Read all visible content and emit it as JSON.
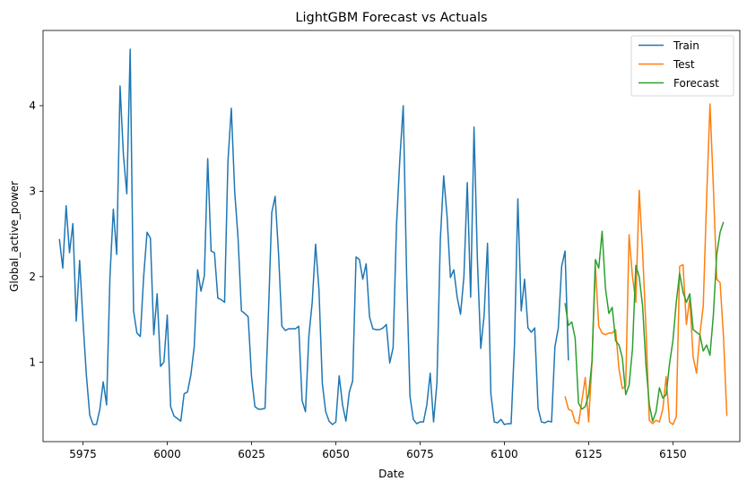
{
  "chart_data": {
    "type": "line",
    "title": "LightGBM Forecast vs Actuals",
    "xlabel": "Date",
    "ylabel": "Global_active_power",
    "xlim": [
      5963.15,
      6169.85
    ],
    "ylim": [
      0.07,
      4.88
    ],
    "xticks": [
      5975,
      6000,
      6025,
      6050,
      6075,
      6100,
      6125,
      6150
    ],
    "yticks": [
      1,
      2,
      3,
      4
    ],
    "grid": false,
    "legend_position": "top-right",
    "series": [
      {
        "name": "Train",
        "color": "#1f77b4",
        "x_start": 5968,
        "values": [
          2.44,
          2.1,
          2.83,
          2.28,
          2.62,
          1.48,
          2.19,
          1.48,
          0.85,
          0.38,
          0.27,
          0.27,
          0.45,
          0.77,
          0.5,
          2.0,
          2.79,
          2.26,
          4.23,
          3.42,
          2.97,
          4.66,
          1.6,
          1.34,
          1.3,
          2.0,
          2.52,
          2.45,
          1.32,
          1.8,
          0.95,
          1.0,
          1.55,
          0.48,
          0.37,
          0.34,
          0.31,
          0.63,
          0.65,
          0.85,
          1.18,
          2.08,
          1.83,
          2.01,
          3.38,
          2.3,
          2.28,
          1.75,
          1.73,
          1.7,
          3.35,
          3.97,
          3.0,
          2.45,
          1.6,
          1.57,
          1.53,
          0.83,
          0.48,
          0.45,
          0.45,
          0.46,
          1.55,
          2.75,
          2.94,
          2.28,
          1.42,
          1.37,
          1.39,
          1.39,
          1.39,
          1.42,
          0.55,
          0.42,
          1.3,
          1.7,
          2.38,
          1.85,
          0.75,
          0.42,
          0.31,
          0.27,
          0.3,
          0.84,
          0.5,
          0.31,
          0.65,
          0.78,
          2.23,
          2.2,
          1.97,
          2.15,
          1.53,
          1.39,
          1.38,
          1.38,
          1.4,
          1.44,
          0.99,
          1.17,
          2.6,
          3.38,
          4.0,
          2.03,
          0.6,
          0.33,
          0.28,
          0.3,
          0.3,
          0.5,
          0.87,
          0.3,
          0.76,
          2.43,
          3.18,
          2.71,
          1.99,
          2.08,
          1.76,
          1.56,
          2.0,
          3.1,
          1.76,
          3.75,
          2.2,
          1.16,
          1.55,
          2.39,
          0.63,
          0.3,
          0.29,
          0.33,
          0.27,
          0.28,
          0.28,
          1.2,
          2.91,
          1.6,
          1.97,
          1.4,
          1.35,
          1.4,
          0.46,
          0.3,
          0.29,
          0.31,
          0.3,
          1.18,
          1.4,
          2.12,
          2.3,
          1.02
        ]
      },
      {
        "name": "Test",
        "color": "#ff7f0e",
        "x_start": 6118,
        "values": [
          0.6,
          0.45,
          0.43,
          0.3,
          0.28,
          0.55,
          0.82,
          0.3,
          1.0,
          2.13,
          1.42,
          1.34,
          1.32,
          1.34,
          1.34,
          1.38,
          0.92,
          0.69,
          0.72,
          2.49,
          2.0,
          1.7,
          3.01,
          2.3,
          1.4,
          0.32,
          0.28,
          0.32,
          0.3,
          0.45,
          0.83,
          0.3,
          0.27,
          0.36,
          2.12,
          2.14,
          1.44,
          1.75,
          1.06,
          0.87,
          1.32,
          1.66,
          2.91,
          4.02,
          3.05,
          1.97,
          1.93,
          1.3,
          0.37
        ]
      },
      {
        "name": "Forecast",
        "color": "#2ca02c",
        "x_start": 6118,
        "values": [
          1.69,
          1.43,
          1.47,
          1.28,
          0.52,
          0.45,
          0.48,
          0.62,
          1.01,
          2.2,
          2.1,
          2.53,
          1.86,
          1.57,
          1.64,
          1.25,
          1.2,
          1.05,
          0.62,
          0.73,
          1.15,
          2.13,
          2.0,
          1.66,
          0.97,
          0.5,
          0.31,
          0.42,
          0.7,
          0.58,
          0.62,
          0.98,
          1.25,
          1.7,
          2.04,
          1.82,
          1.7,
          1.8,
          1.38,
          1.35,
          1.32,
          1.13,
          1.2,
          1.08,
          1.55,
          2.26,
          2.52,
          2.64
        ]
      }
    ]
  }
}
